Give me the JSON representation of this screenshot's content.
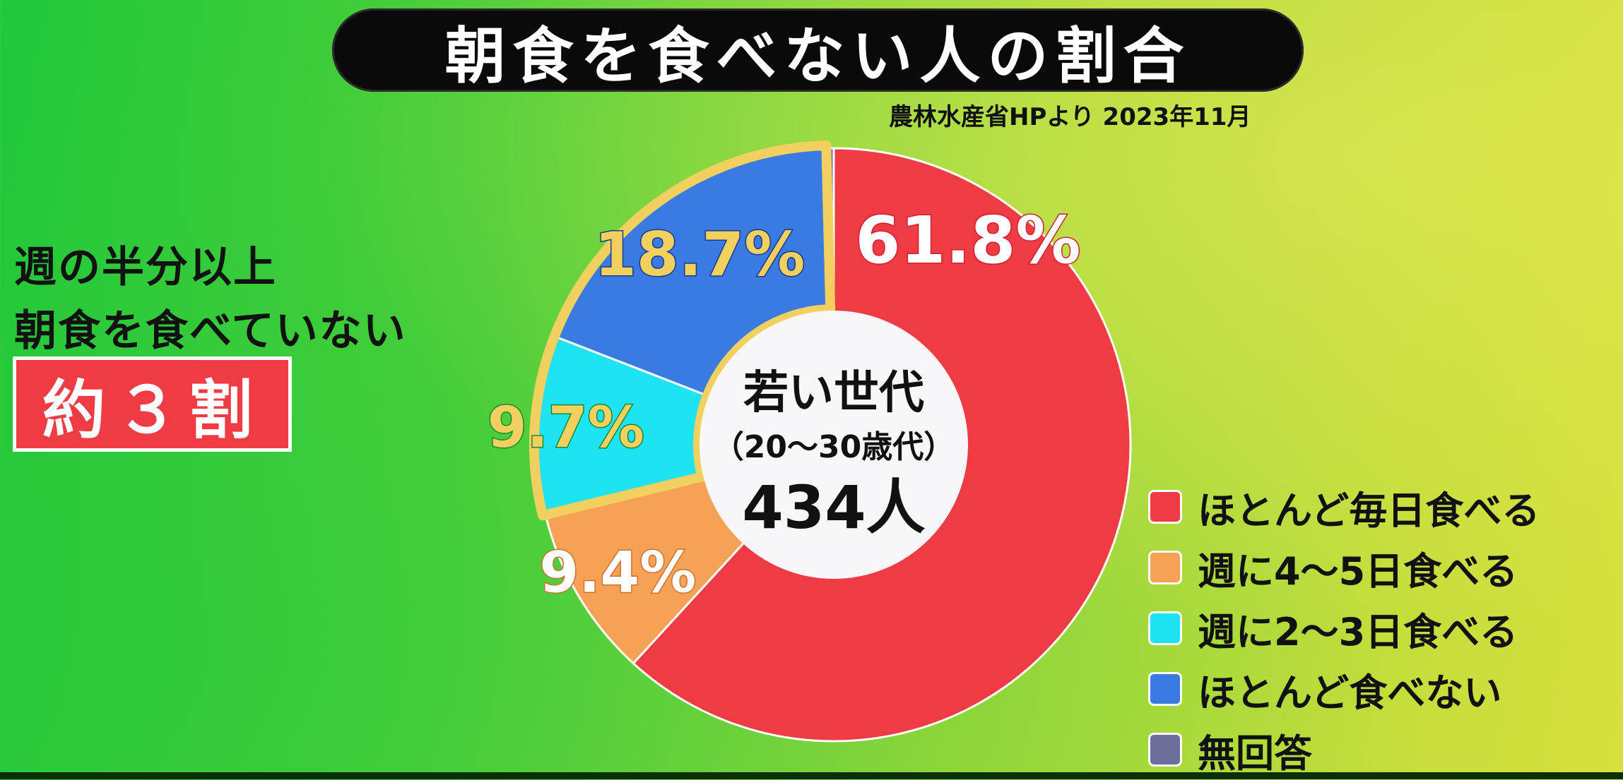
{
  "title": "朝食を食べない人の割合",
  "source": "農林水産省HPより 2023年11月",
  "callout": {
    "line1": "週の半分以上",
    "line2": "朝食を食べていない",
    "badge": "約３割"
  },
  "center": {
    "line1": "若い世代",
    "line2": "（20～30歳代）",
    "line3": "434人"
  },
  "colors": {
    "daily": "#ef3b44",
    "four_five": "#f7a155",
    "two_three": "#1de3f2",
    "rarely": "#3a7be2",
    "no_answer": "#6e6e9c",
    "highlight_border": "#f2d060"
  },
  "chart_data": {
    "type": "pie",
    "title": "朝食を食べない人の割合",
    "categories": [
      "ほとんど毎日食べる",
      "週に4～5日食べる",
      "週に2～3日食べる",
      "ほとんど食べない",
      "無回答"
    ],
    "values": [
      61.8,
      9.4,
      9.7,
      18.7,
      0.4
    ],
    "labels": [
      "61.8%",
      "9.4%",
      "9.7%",
      "18.7%",
      ""
    ],
    "legend_position": "bottom-right"
  }
}
